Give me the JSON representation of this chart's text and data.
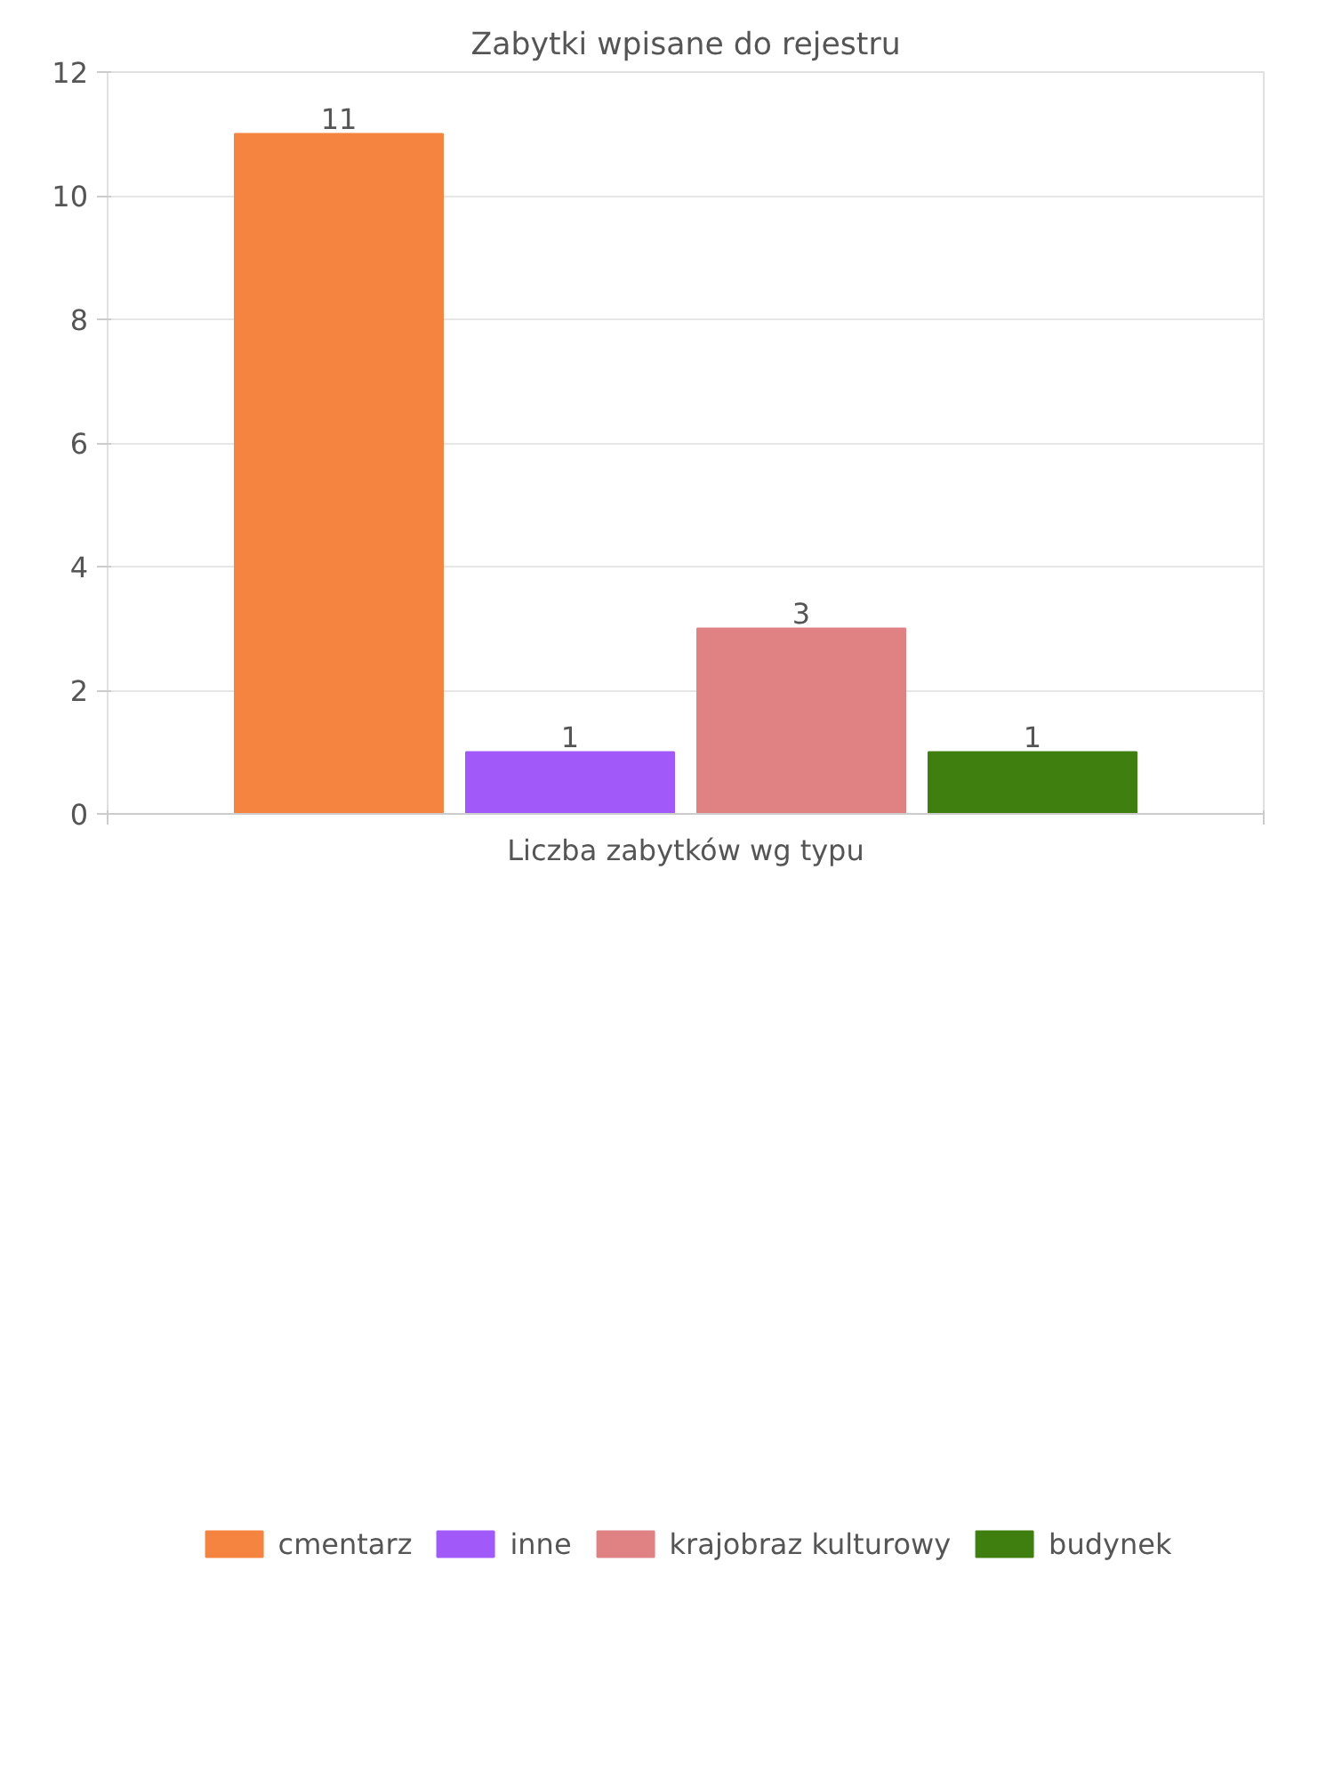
{
  "chart_data": {
    "type": "bar",
    "title": "Zabytki wpisane do rejestru",
    "xlabel": "Liczba zabytków wg typu",
    "categories": [
      null
    ],
    "series": [
      {
        "name": "cmentarz",
        "color": "#f4843f",
        "values": [
          11
        ]
      },
      {
        "name": "inne",
        "color": "#a259fa",
        "values": [
          1
        ]
      },
      {
        "name": "krajobraz kulturowy",
        "color": "#e08283",
        "values": [
          3
        ]
      },
      {
        "name": "budynek",
        "color": "#3f7f0f",
        "values": [
          1
        ]
      }
    ],
    "ylim": [
      0,
      12
    ],
    "yticks": [
      0,
      2,
      4,
      6,
      8,
      10,
      12
    ],
    "grid": "y",
    "legend": "bottom",
    "data_labels": true
  }
}
